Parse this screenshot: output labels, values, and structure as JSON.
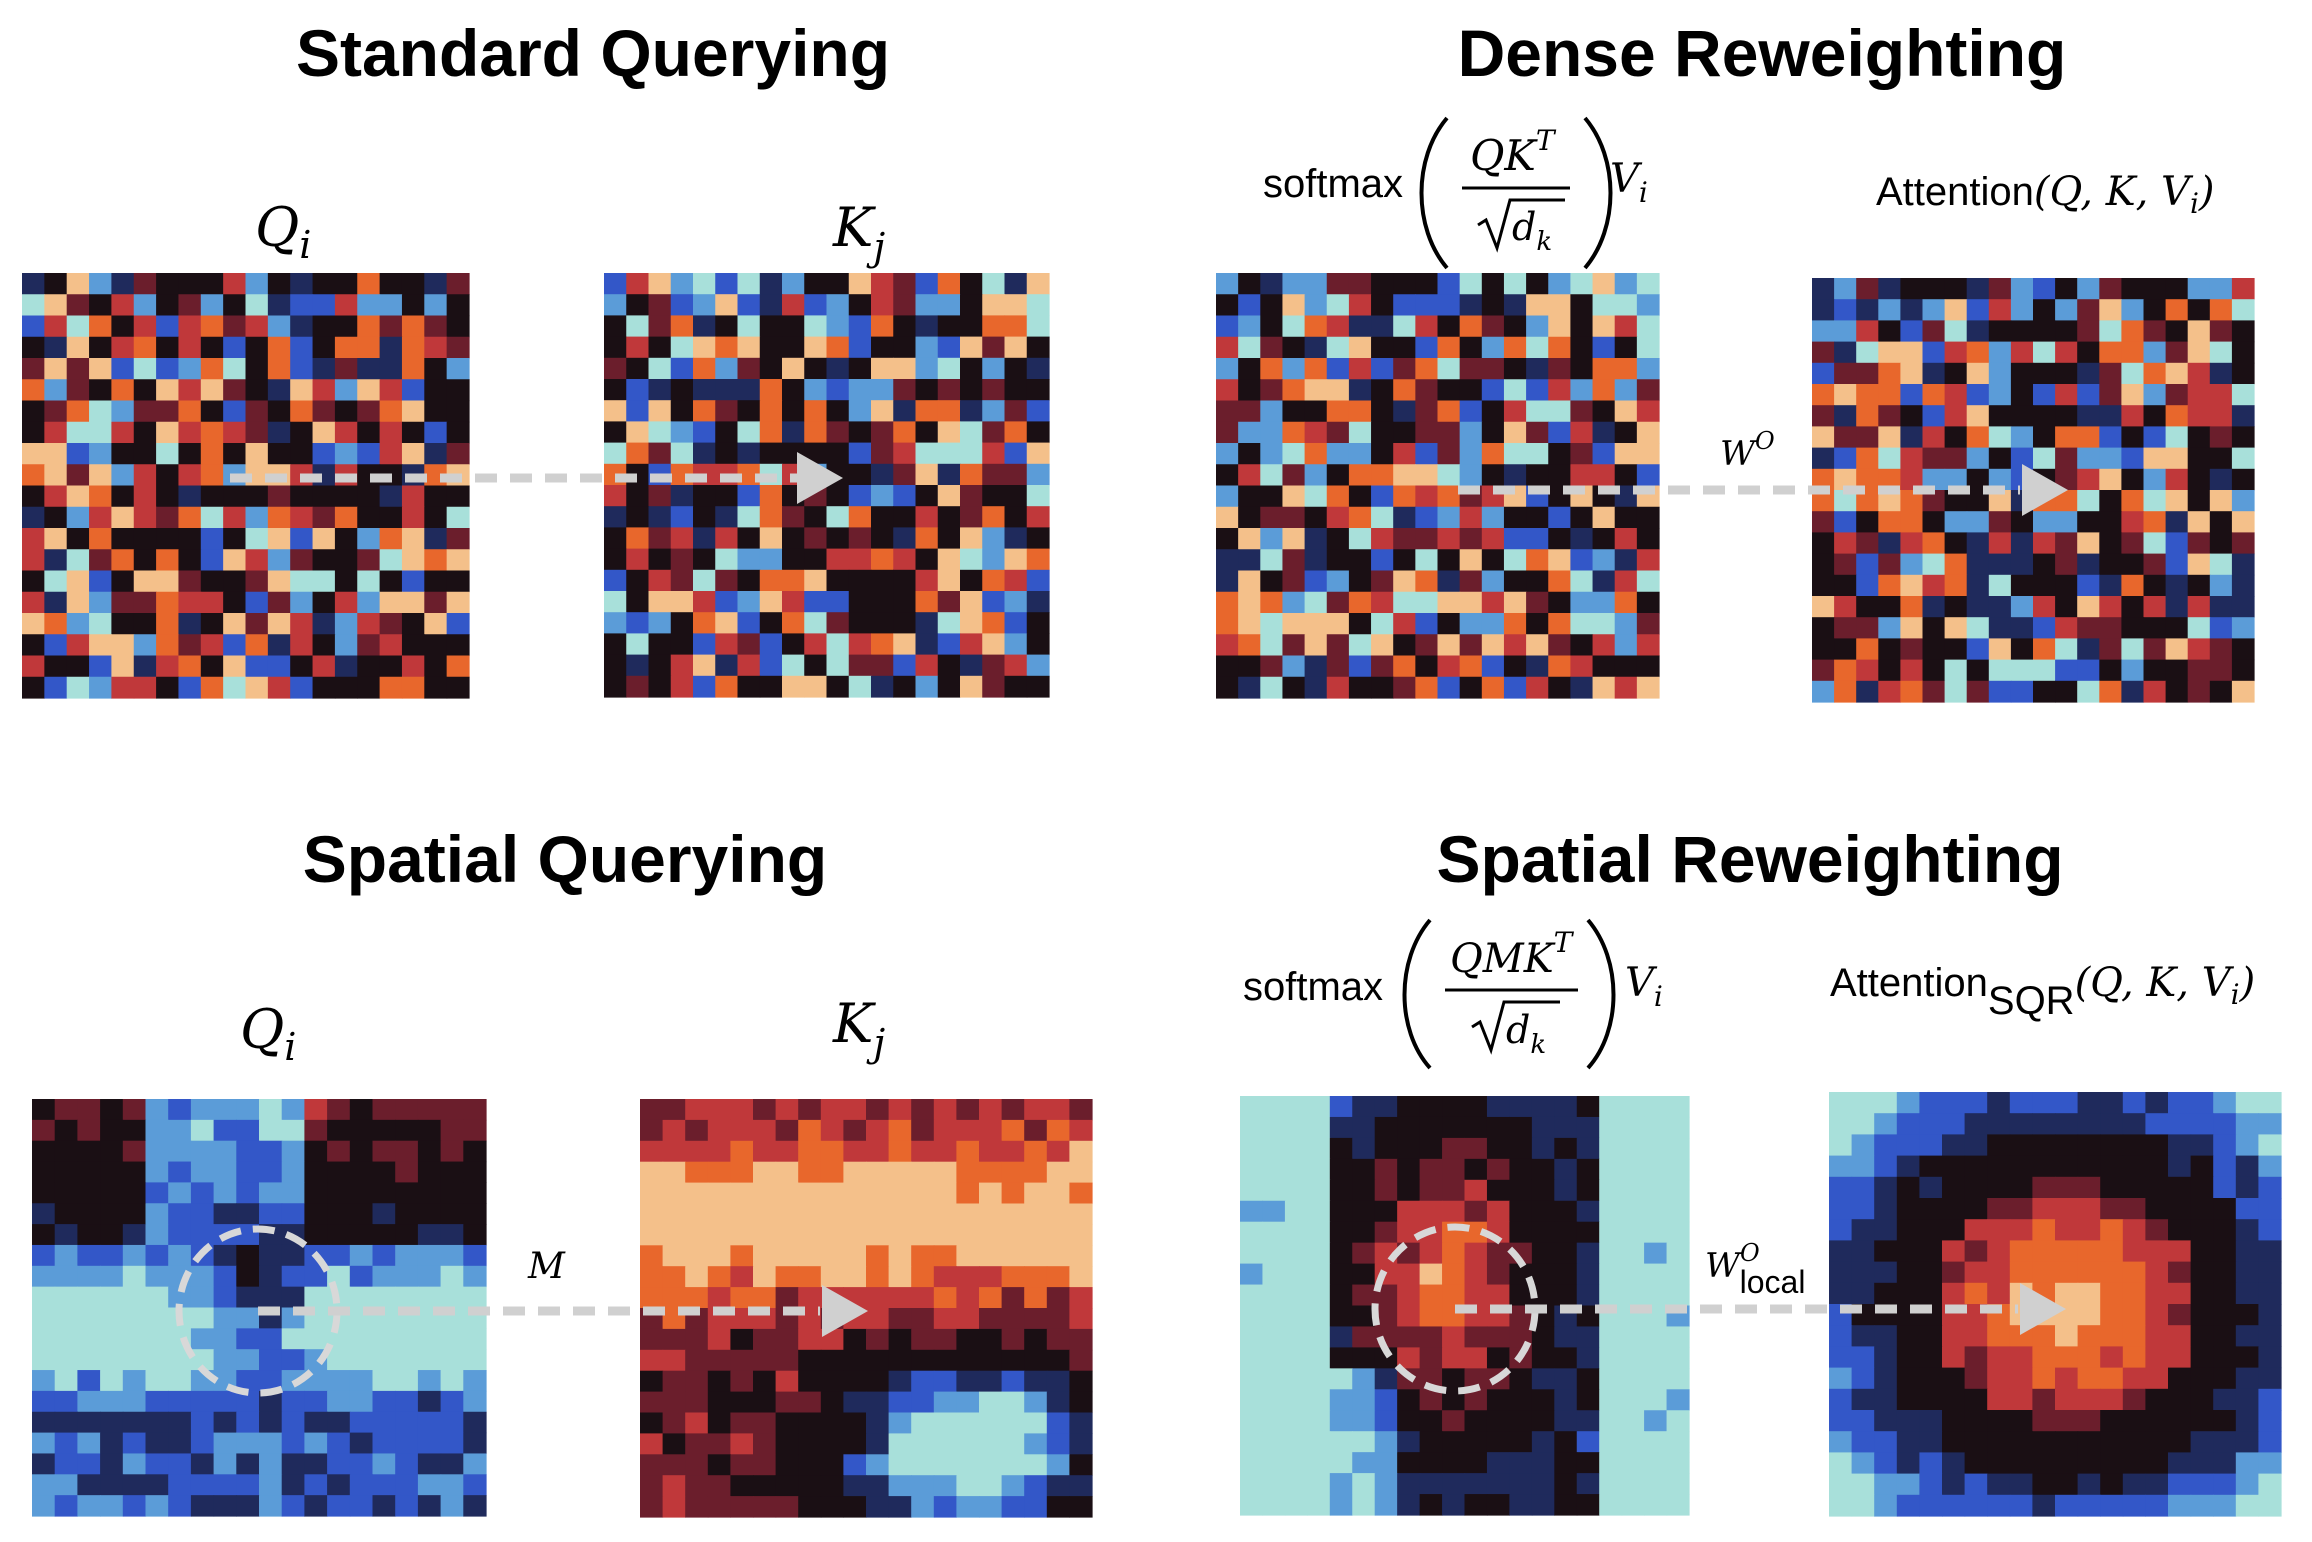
{
  "panels": {
    "standard_querying": {
      "title": "Standard Querying",
      "left_label": "Q",
      "left_sub": "i",
      "right_label": "K",
      "right_sub": "j"
    },
    "dense_reweighting": {
      "title": "Dense Reweighting",
      "softmax_word": "softmax",
      "numerator": "QK",
      "numerator_sup": "T",
      "denominator_var": "d",
      "denominator_sub": "k",
      "value_var": "V",
      "value_sub": "i",
      "attention_word": "Attention",
      "attention_args": "(Q, K, V",
      "attention_args_sub": "i",
      "attention_close": ")",
      "arrow_label": "W",
      "arrow_label_sup": "O"
    },
    "spatial_querying": {
      "title": "Spatial Querying",
      "left_label": "Q",
      "left_sub": "i",
      "right_label": "K",
      "right_sub": "j",
      "arrow_label": "M"
    },
    "spatial_reweighting": {
      "title": "Spatial Reweighting",
      "softmax_word": "softmax",
      "numerator": "QMK",
      "numerator_sup": "T",
      "denominator_var": "d",
      "denominator_sub": "k",
      "value_var": "V",
      "value_sub": "i",
      "attention_word": "Attention",
      "attention_sub": "SQR",
      "attention_args": "(Q, K, V",
      "attention_args_sub": "i",
      "attention_close": ")",
      "arrow_label": "W",
      "arrow_label_sup": "O",
      "arrow_label_sub": "local"
    }
  },
  "colors": {
    "deep_black": "#1a0f14",
    "dark_red": "#6b1e2c",
    "red": "#c0383a",
    "orange": "#e8672c",
    "peach": "#f4c08a",
    "navy": "#1f2a5c",
    "blue": "#3357c8",
    "sky": "#5b9cd8",
    "pale_cyan": "#a8e0da",
    "arrow": "#d0d0d0"
  },
  "heatmaps": [
    {
      "name": "standard-q-heatmap",
      "pattern": "random",
      "seed": 11
    },
    {
      "name": "standard-k-heatmap",
      "pattern": "random",
      "seed": 23
    },
    {
      "name": "dense-softmax-heatmap",
      "pattern": "random",
      "seed": 37
    },
    {
      "name": "dense-attention-heatmap",
      "pattern": "random",
      "seed": 53
    },
    {
      "name": "spatial-q-heatmap",
      "pattern": "blue-field",
      "seed": 71
    },
    {
      "name": "spatial-k-heatmap",
      "pattern": "warm-field",
      "seed": 89
    },
    {
      "name": "spatial-softmax-heatmap",
      "pattern": "center-blob",
      "seed": 97
    },
    {
      "name": "spatial-attention-heatmap",
      "pattern": "radial-blob",
      "seed": 131
    }
  ]
}
